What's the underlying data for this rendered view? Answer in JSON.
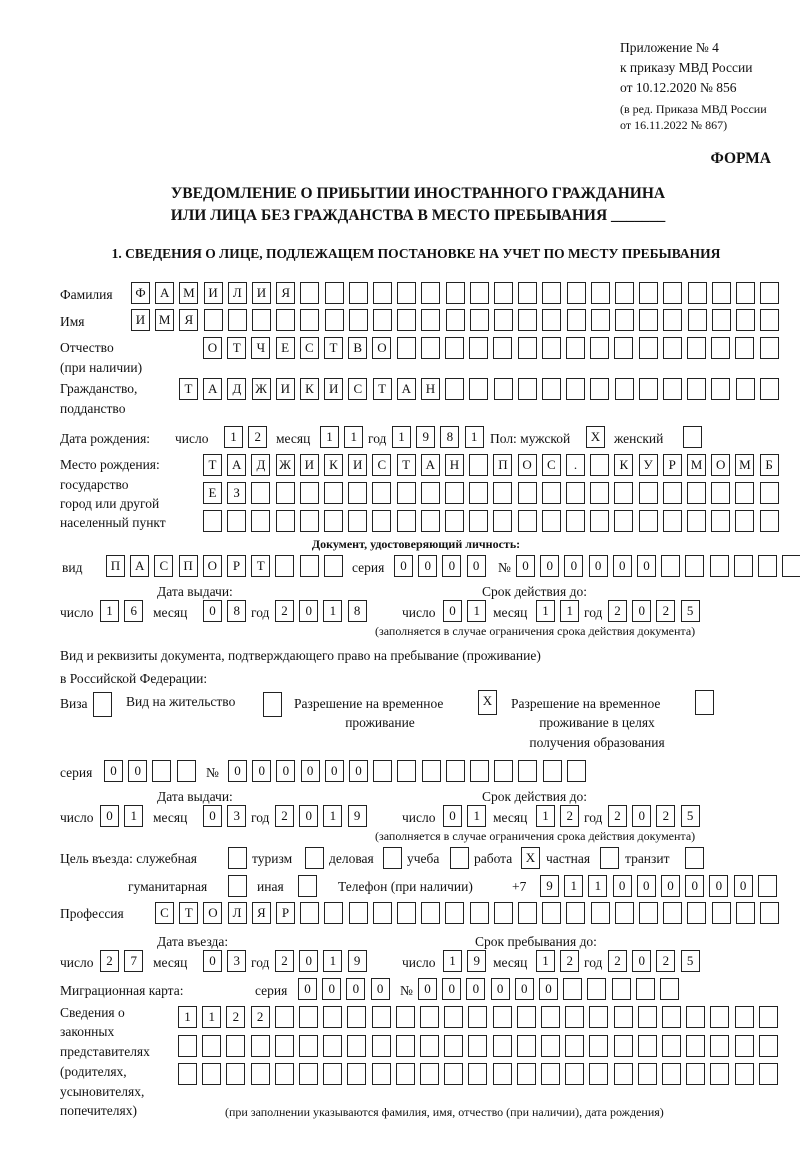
{
  "header": {
    "l1": "Приложение № 4",
    "l2": "к приказу МВД России",
    "l3": "от 10.12.2020 № 856",
    "l4": "(в ред. Приказа МВД России",
    "l5": "от 16.11.2022 № 867)",
    "forma": "ФОРМА"
  },
  "title": {
    "line1": "УВЕДОМЛЕНИЕ О ПРИБЫТИИ ИНОСТРАННОГО ГРАЖДАНИНА",
    "line2": "ИЛИ ЛИЦА БЕЗ ГРАЖДАНСТВА В МЕСТО ПРЕБЫВАНИЯ _______"
  },
  "section1": "1. СВЕДЕНИЯ О ЛИЦЕ, ПОДЛЕЖАЩЕМ ПОСТАНОВКЕ НА УЧЕТ ПО МЕСТУ ПРЕБЫВАНИЯ",
  "labels": {
    "surname": "Фамилия",
    "name": "Имя",
    "patronymic": "Отчество",
    "patronymic2": "(при наличии)",
    "citizenship": "Гражданство,",
    "citizenship2": "подданство",
    "birth_date": "Дата рождения:",
    "day": "число",
    "month": "месяц",
    "year": "год",
    "sex": "Пол: мужской",
    "female": "женский",
    "birthplace1": "Место рождения:",
    "birthplace2": "государство",
    "birthplace3": "город или другой",
    "birthplace4": "населенный пункт",
    "id_doc": "Документ, удостоверяющий личность:",
    "kind": "вид",
    "series": "серия",
    "number": "№",
    "issue_date": "Дата выдачи:",
    "valid_until": "Срок действия до:",
    "valid_note": "(заполняется в случае ограничения срока действия документа)",
    "right_doc1": "Вид и реквизиты документа, подтверждающего право на пребывание (проживание)",
    "right_doc2": "в Российской Федерации:",
    "visa": "Виза",
    "residence": "Вид на жительство",
    "temp1": "Разрешение на временное",
    "temp2": "проживание",
    "edu1": "Разрешение на временное",
    "edu2": "проживание в целях",
    "edu3": "получения образования",
    "purpose": "Цель въезда: служебная",
    "tourism": "туризм",
    "business": "деловая",
    "study": "учеба",
    "work": "работа",
    "private": "частная",
    "transit": "транзит",
    "humanitarian": "гуманитарная",
    "other": "иная",
    "phone": "Телефон (при наличии)",
    "phone_prefix": "+7",
    "profession": "Профессия",
    "entry_date": "Дата въезда:",
    "stay_until": "Срок пребывания до:",
    "migration_card": "Миграционная карта:",
    "reps1": "Сведения о",
    "reps2": "законных",
    "reps3": "представителях",
    "reps4": "(родителях,",
    "reps5": "усыновителях,",
    "reps6": "попечителях)",
    "reps_note": "(при заполнении указываются фамилия, имя, отчество (при наличии), дата рождения)"
  },
  "values": {
    "surname": [
      "Ф",
      "А",
      "М",
      "И",
      "Л",
      "И",
      "Я",
      "",
      "",
      "",
      "",
      "",
      "",
      "",
      "",
      "",
      "",
      "",
      "",
      "",
      "",
      "",
      "",
      "",
      "",
      "",
      ""
    ],
    "name": [
      "И",
      "М",
      "Я",
      "",
      "",
      "",
      "",
      "",
      "",
      "",
      "",
      "",
      "",
      "",
      "",
      "",
      "",
      "",
      "",
      "",
      "",
      "",
      "",
      "",
      "",
      "",
      ""
    ],
    "patronymic": [
      "О",
      "Т",
      "Ч",
      "Е",
      "С",
      "Т",
      "В",
      "О",
      "",
      "",
      "",
      "",
      "",
      "",
      "",
      "",
      "",
      "",
      "",
      "",
      "",
      "",
      "",
      ""
    ],
    "citizenship": [
      "Т",
      "А",
      "Д",
      "Ж",
      "И",
      "К",
      "И",
      "С",
      "Т",
      "А",
      "Н",
      "",
      "",
      "",
      "",
      "",
      "",
      "",
      "",
      "",
      "",
      "",
      "",
      "",
      ""
    ],
    "birth_day": [
      "1",
      "2"
    ],
    "birth_month": [
      "1",
      "1"
    ],
    "birth_year": [
      "1",
      "9",
      "8",
      "1"
    ],
    "sex_male": [
      "X"
    ],
    "sex_female": [
      ""
    ],
    "birthplace1": [
      "Т",
      "А",
      "Д",
      "Ж",
      "И",
      "К",
      "И",
      "С",
      "Т",
      "А",
      "Н",
      "",
      "П",
      "О",
      "С",
      ".",
      "",
      "К",
      "У",
      "Р",
      "М",
      "О",
      "М",
      "Б"
    ],
    "birthplace2": [
      "Е",
      "З",
      "",
      "",
      "",
      "",
      "",
      "",
      "",
      "",
      "",
      "",
      "",
      "",
      "",
      "",
      "",
      "",
      "",
      "",
      "",
      "",
      "",
      ""
    ],
    "birthplace3": [
      "",
      "",
      "",
      "",
      "",
      "",
      "",
      "",
      "",
      "",
      "",
      "",
      "",
      "",
      "",
      "",
      "",
      "",
      "",
      "",
      "",
      "",
      "",
      ""
    ],
    "doc_kind": [
      "П",
      "А",
      "С",
      "П",
      "О",
      "Р",
      "Т",
      "",
      "",
      ""
    ],
    "doc_series": [
      "0",
      "0",
      "0",
      "0"
    ],
    "doc_number": [
      "0",
      "0",
      "0",
      "0",
      "0",
      "0",
      "",
      "",
      "",
      "",
      "",
      ""
    ],
    "doc_issue_day": [
      "1",
      "6"
    ],
    "doc_issue_month": [
      "0",
      "8"
    ],
    "doc_issue_year": [
      "2",
      "0",
      "1",
      "8"
    ],
    "doc_valid_day": [
      "0",
      "1"
    ],
    "doc_valid_month": [
      "1",
      "1"
    ],
    "doc_valid_year": [
      "2",
      "0",
      "2",
      "5"
    ],
    "visa": [
      ""
    ],
    "residence": [
      ""
    ],
    "temp_residence": [
      "X"
    ],
    "edu_residence": [
      ""
    ],
    "right_series": [
      "0",
      "0",
      "",
      ""
    ],
    "right_number": [
      "0",
      "0",
      "0",
      "0",
      "0",
      "0",
      "",
      "",
      "",
      "",
      "",
      "",
      "",
      "",
      ""
    ],
    "right_issue_day": [
      "0",
      "1"
    ],
    "right_issue_month": [
      "0",
      "3"
    ],
    "right_issue_year": [
      "2",
      "0",
      "1",
      "9"
    ],
    "right_valid_day": [
      "0",
      "1"
    ],
    "right_valid_month": [
      "1",
      "2"
    ],
    "right_valid_year": [
      "2",
      "0",
      "2",
      "5"
    ],
    "p_service": [
      ""
    ],
    "p_tourism": [
      ""
    ],
    "p_business": [
      ""
    ],
    "p_study": [
      ""
    ],
    "p_work": [
      "X"
    ],
    "p_private": [
      ""
    ],
    "p_transit": [
      ""
    ],
    "p_humanitarian": [
      ""
    ],
    "p_other": [
      ""
    ],
    "phone": [
      "9",
      "1",
      "1",
      "0",
      "0",
      "0",
      "0",
      "0",
      "0",
      ""
    ],
    "profession": [
      "С",
      "Т",
      "О",
      "Л",
      "Я",
      "Р",
      "",
      "",
      "",
      "",
      "",
      "",
      "",
      "",
      "",
      "",
      "",
      "",
      "",
      "",
      "",
      "",
      "",
      "",
      "",
      ""
    ],
    "entry_day": [
      "2",
      "7"
    ],
    "entry_month": [
      "0",
      "3"
    ],
    "entry_year": [
      "2",
      "0",
      "1",
      "9"
    ],
    "stay_day": [
      "1",
      "9"
    ],
    "stay_month": [
      "1",
      "2"
    ],
    "stay_year": [
      "2",
      "0",
      "2",
      "5"
    ],
    "mc_series": [
      "0",
      "0",
      "0",
      "0"
    ],
    "mc_number": [
      "0",
      "0",
      "0",
      "0",
      "0",
      "0",
      "",
      "",
      "",
      "",
      ""
    ],
    "reps1": [
      "1",
      "1",
      "2",
      "2",
      "",
      "",
      "",
      "",
      "",
      "",
      "",
      "",
      "",
      "",
      "",
      "",
      "",
      "",
      "",
      "",
      "",
      "",
      "",
      "",
      ""
    ],
    "reps2": [
      "",
      "",
      "",
      "",
      "",
      "",
      "",
      "",
      "",
      "",
      "",
      "",
      "",
      "",
      "",
      "",
      "",
      "",
      "",
      "",
      "",
      "",
      "",
      "",
      ""
    ],
    "reps3": [
      "",
      "",
      "",
      "",
      "",
      "",
      "",
      "",
      "",
      "",
      "",
      "",
      "",
      "",
      "",
      "",
      "",
      "",
      "",
      "",
      "",
      "",
      "",
      "",
      ""
    ]
  }
}
